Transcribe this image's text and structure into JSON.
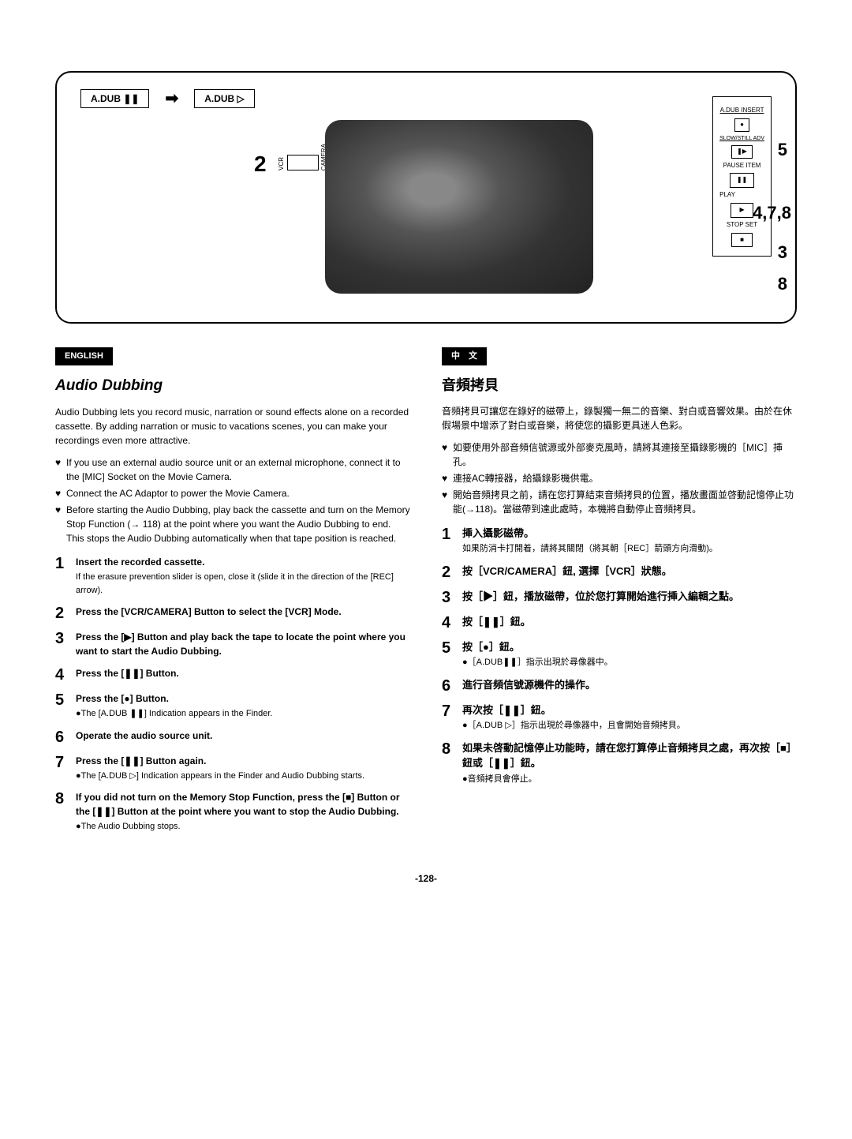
{
  "figure": {
    "btn1": "A.DUB ❚❚",
    "btn2": "A.DUB ▷",
    "num2": "2",
    "switch_vcr": "VCR",
    "switch_cam": "CAMERA",
    "panel": {
      "l1": "A.DUB\nINSERT",
      "l2": "●",
      "l3": "SLOW/STILL\nADV",
      "l4": "❚▶",
      "l5": "PAUSE ITEM",
      "l6": "❚❚",
      "l7": "PLAY",
      "l8": "▶",
      "l9": "STOP SET",
      "l10": "■"
    },
    "labels": {
      "n5": "5",
      "n478": "4,7,8",
      "n3": "3",
      "n8": "8"
    }
  },
  "english": {
    "badge": "ENGLISH",
    "title": "Audio Dubbing",
    "intro": "Audio Dubbing lets you record music, narration or sound effects alone on a recorded cassette. By adding narration or music to vacations scenes, you can make your recordings even more attractive.",
    "bullets": [
      "If you use an external audio source unit or an external microphone, connect it to the [MIC] Socket on the Movie Camera.",
      "Connect the AC Adaptor to power the Movie Camera.",
      "Before starting the Audio Dubbing, play back the cassette and turn on the Memory Stop Function (→ 118) at the point where you want the Audio Dubbing to end. This stops the Audio Dubbing automatically when that tape position is reached."
    ],
    "steps": [
      {
        "t": "Insert the recorded cassette.",
        "s": [
          "If the erasure prevention slider is open, close it (slide it in the direction of the [REC] arrow)."
        ]
      },
      {
        "t": "Press the [VCR/CAMERA] Button to select the [VCR] Mode.",
        "s": []
      },
      {
        "t": "Press the [▶] Button and play back the tape to locate the point where you want to start the Audio Dubbing.",
        "s": []
      },
      {
        "t": "Press the [❚❚] Button.",
        "s": []
      },
      {
        "t": "Press the [●] Button.",
        "s": [
          "●The [A.DUB ❚❚] Indication appears in the Finder."
        ]
      },
      {
        "t": "Operate the audio source unit.",
        "s": []
      },
      {
        "t": "Press the [❚❚] Button again.",
        "s": [
          "●The [A.DUB ▷] Indication appears in the Finder and Audio Dubbing starts."
        ]
      },
      {
        "t": "If you did not turn on the Memory Stop Function, press the [■] Button or the [❚❚] Button at the point where you want to stop the Audio Dubbing.",
        "s": [
          "●The Audio Dubbing stops."
        ]
      }
    ]
  },
  "chinese": {
    "badge": "中　文",
    "title": "音頻拷貝",
    "intro": "音頻拷貝可讓您在錄好的磁帶上，錄製獨一無二的音樂、對白或音響效果。由於在休假場景中增添了對白或音樂，將使您的攝影更具迷人色彩。",
    "bullets": [
      "如要使用外部音頻信號源或外部麥克風時，請將其連接至攝錄影機的［MIC］挿孔。",
      "連接AC轉接器，給攝錄影機供電。",
      "開始音頻拷貝之前，請在您打算結束音頻拷貝的位置，播放畫面並啓動記憶停止功能(→118)。當磁帶到達此處時，本機將自動停止音頻拷貝。"
    ],
    "steps": [
      {
        "t": "挿入攝影磁帶。",
        "s": [
          "如果防消卡打開着，請將其關閉（將其朝［REC］箭頭方向滑動)。"
        ]
      },
      {
        "t": "按［VCR/CAMERA］鈕, 選擇［VCR］狀態。",
        "s": []
      },
      {
        "t": "按［▶］鈕，播放磁帶，位於您打算開始進行挿入編輯之點。",
        "s": []
      },
      {
        "t": "按［❚❚］鈕。",
        "s": []
      },
      {
        "t": "按［●］鈕。",
        "s": [
          "●［A.DUB❚❚］指示出現於尋像器中。"
        ]
      },
      {
        "t": "進行音頻信號源機件的操作。",
        "s": []
      },
      {
        "t": "再次按［❚❚］鈕。",
        "s": [
          "●［A.DUB ▷］指示出現於尋像器中，且會開始音頻拷貝。"
        ]
      },
      {
        "t": "如果未啓動記憶停止功能時，請在您打算停止音頻拷貝之處，再次按［■］鈕或［❚❚］鈕。",
        "s": [
          "●音頻拷貝會停止。"
        ]
      }
    ]
  },
  "page": "-128-"
}
